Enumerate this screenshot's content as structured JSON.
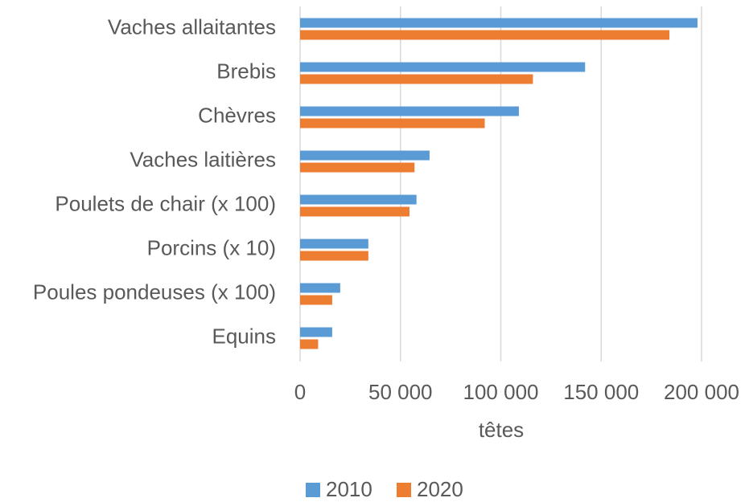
{
  "chart_data": {
    "type": "bar",
    "orientation": "horizontal",
    "x_label": "têtes",
    "categories": [
      "Vaches allaitantes",
      "Brebis",
      "Chèvres",
      "Vaches laitières",
      "Poulets de chair (x 100)",
      "Porcins (x 10)",
      "Poules pondeuses (x 100)",
      "Equins"
    ],
    "series": [
      {
        "name": "2010",
        "color": "#5b9bd5",
        "values": [
          198000,
          142000,
          109000,
          64500,
          58000,
          34000,
          20000,
          16000
        ]
      },
      {
        "name": "2020",
        "color": "#ed7d31",
        "values": [
          184000,
          116000,
          92000,
          57000,
          54500,
          34000,
          16000,
          9000
        ]
      }
    ],
    "xlim": [
      0,
      200000
    ],
    "xticks": [
      0,
      {
        "value": 50000,
        "label": "50 000"
      },
      {
        "value": 100000,
        "label": "100 000"
      },
      {
        "value": 150000,
        "label": "150 000"
      },
      {
        "value": 200000,
        "label": "200 000"
      }
    ],
    "grid": true,
    "legend": "bottom"
  }
}
